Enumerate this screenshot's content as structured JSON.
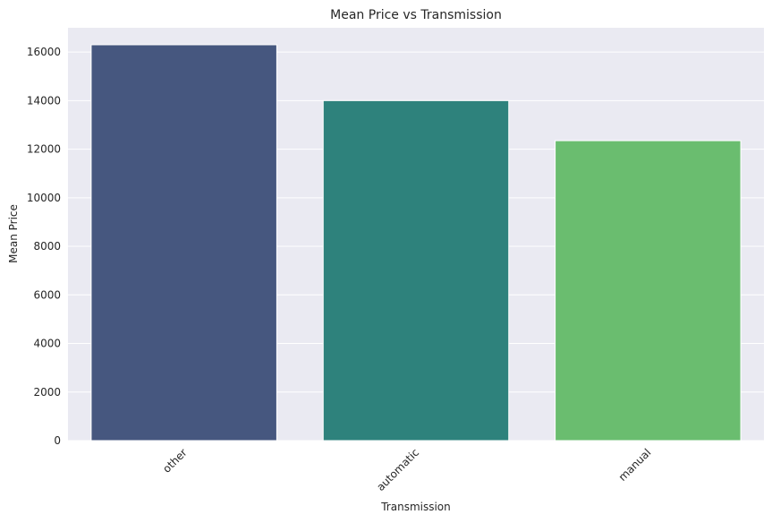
{
  "chart_data": {
    "type": "bar",
    "title": "Mean Price vs Transmission",
    "xlabel": "Transmission",
    "ylabel": "Mean Price",
    "categories": [
      "other",
      "automatic",
      "manual"
    ],
    "values": [
      16300,
      14000,
      12350
    ],
    "colors": [
      "#46577f",
      "#2e827c",
      "#6abd6f"
    ],
    "ylim": [
      0,
      17000
    ],
    "yticks": [
      0,
      2000,
      4000,
      6000,
      8000,
      10000,
      12000,
      14000,
      16000
    ],
    "grid": true,
    "background": "#eaeaf2"
  }
}
